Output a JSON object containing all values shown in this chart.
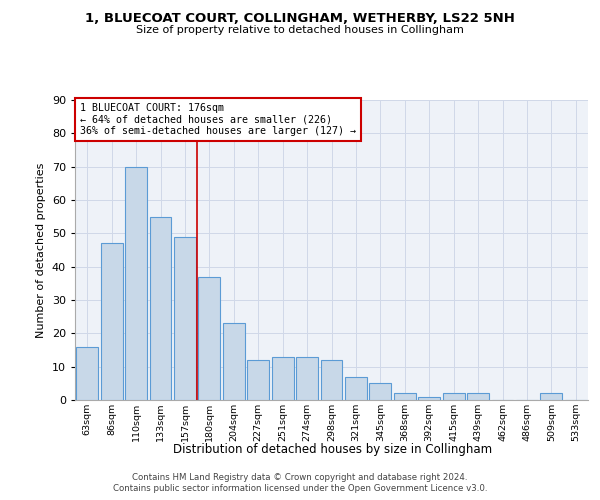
{
  "title_line1": "1, BLUECOAT COURT, COLLINGHAM, WETHERBY, LS22 5NH",
  "title_line2": "Size of property relative to detached houses in Collingham",
  "xlabel": "Distribution of detached houses by size in Collingham",
  "ylabel": "Number of detached properties",
  "categories": [
    "63sqm",
    "86sqm",
    "110sqm",
    "133sqm",
    "157sqm",
    "180sqm",
    "204sqm",
    "227sqm",
    "251sqm",
    "274sqm",
    "298sqm",
    "321sqm",
    "345sqm",
    "368sqm",
    "392sqm",
    "415sqm",
    "439sqm",
    "462sqm",
    "486sqm",
    "509sqm",
    "533sqm"
  ],
  "values": [
    16,
    47,
    70,
    55,
    49,
    37,
    23,
    12,
    13,
    13,
    12,
    7,
    5,
    2,
    1,
    2,
    2,
    0,
    0,
    2,
    0
  ],
  "bar_color": "#c8d8e8",
  "bar_edge_color": "#5b9bd5",
  "vline_x": 4.5,
  "vline_color": "#cc0000",
  "annotation_text": "1 BLUECOAT COURT: 176sqm\n← 64% of detached houses are smaller (226)\n36% of semi-detached houses are larger (127) →",
  "annotation_box_color": "#ffffff",
  "annotation_box_edge": "#cc0000",
  "ylim": [
    0,
    90
  ],
  "yticks": [
    0,
    10,
    20,
    30,
    40,
    50,
    60,
    70,
    80,
    90
  ],
  "grid_color": "#d0d8e8",
  "bg_color": "#eef2f8",
  "footer_line1": "Contains HM Land Registry data © Crown copyright and database right 2024.",
  "footer_line2": "Contains public sector information licensed under the Open Government Licence v3.0."
}
